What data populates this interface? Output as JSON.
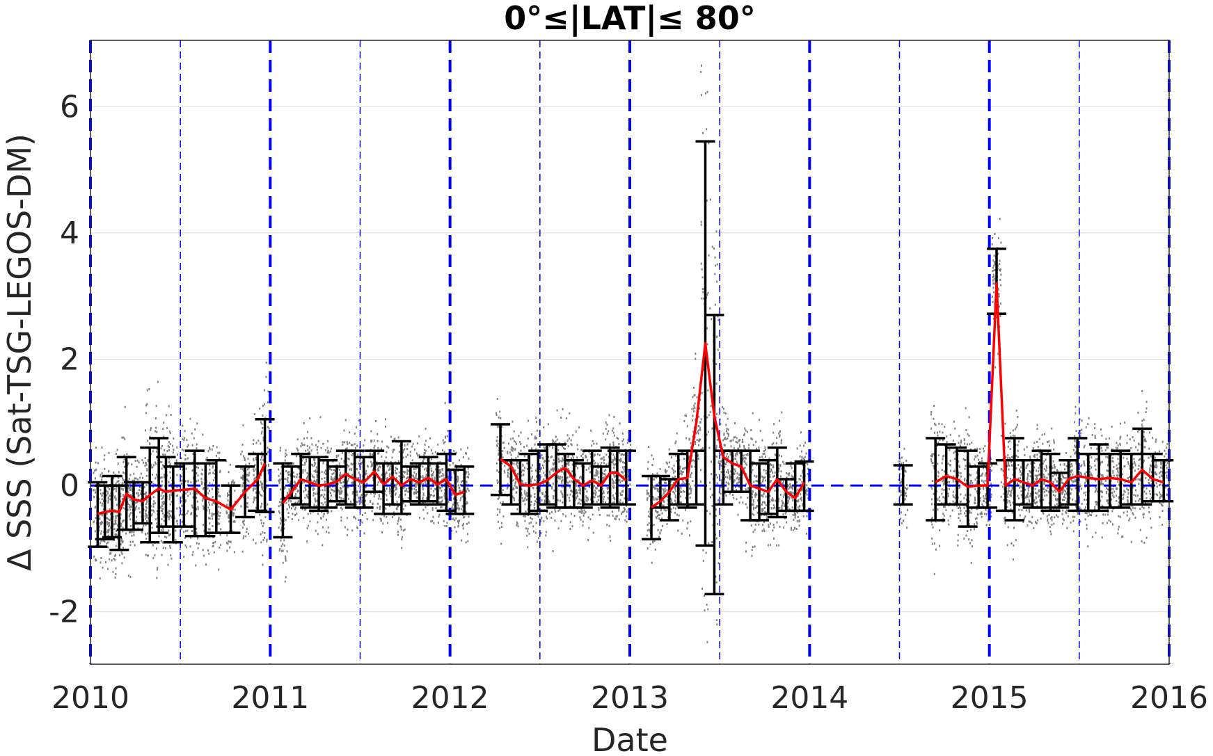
{
  "chart_data": {
    "type": "scatter",
    "title": "0°≤|LAT|≤ 80°",
    "xlabel": "Date",
    "ylabel": "Δ SSS (Sat-TSG-LEGOS-DM)",
    "xlim": [
      2010,
      2016
    ],
    "ylim": [
      -2.83,
      7.05
    ],
    "x_ticks": [
      "2010",
      "2011",
      "2012",
      "2013",
      "2014",
      "2015",
      "2016"
    ],
    "y_ticks": [
      "-2",
      "0",
      "2",
      "4",
      "6"
    ],
    "grid": true,
    "zero_line": 0,
    "colors": {
      "scatter": "#808080",
      "mean": "#ff0000",
      "errorbar": "#000000",
      "reference": "#0000ff",
      "grid": "#e0e0e0"
    },
    "year_lines": [
      2010,
      2011,
      2012,
      2013,
      2014,
      2015,
      2016
    ],
    "half_year_lines": [
      2010.5,
      2011.5,
      2012.5,
      2013.5,
      2014.5,
      2015.5
    ],
    "series": [
      {
        "x": [
          2010.04,
          2010.08,
          2010.12,
          2010.16,
          2010.2,
          2010.24,
          2010.29,
          2010.33,
          2010.38,
          2010.42,
          2010.46,
          2010.52,
          2010.58,
          2010.64,
          2010.7,
          2010.78,
          2010.86,
          2010.93,
          2010.97
        ],
        "mean": [
          -0.45,
          -0.42,
          -0.4,
          -0.42,
          -0.13,
          -0.22,
          -0.25,
          -0.15,
          -0.05,
          -0.1,
          -0.08,
          -0.07,
          -0.05,
          -0.2,
          -0.25,
          -0.38,
          -0.1,
          0.1,
          0.35
        ],
        "err_low": [
          -0.97,
          -0.85,
          -0.82,
          -1.02,
          -0.7,
          -0.7,
          -0.6,
          -0.9,
          -0.75,
          -0.65,
          -0.9,
          -0.65,
          -0.8,
          -0.8,
          -0.75,
          -0.75,
          -0.5,
          -0.4,
          -0.42
        ],
        "err_high": [
          0.05,
          0.0,
          0.15,
          0.0,
          0.45,
          0.05,
          0.05,
          0.6,
          0.75,
          0.45,
          0.3,
          0.35,
          0.55,
          0.35,
          0.4,
          0.0,
          0.3,
          0.5,
          1.05
        ]
      },
      {
        "x": [
          2011.07,
          2011.12,
          2011.17,
          2011.22,
          2011.27,
          2011.32,
          2011.37,
          2011.42,
          2011.47,
          2011.52,
          2011.58,
          2011.63,
          2011.68,
          2011.73,
          2011.78,
          2011.83,
          2011.88,
          2011.93,
          2011.98,
          2012.03,
          2012.08
        ],
        "mean": [
          -0.28,
          -0.1,
          0.1,
          0.05,
          0.0,
          0.02,
          0.06,
          0.18,
          0.1,
          0.05,
          0.22,
          0.02,
          0.14,
          0.0,
          0.1,
          0.05,
          0.12,
          0.02,
          0.1,
          -0.15,
          -0.1
        ],
        "err_low": [
          -0.82,
          -0.2,
          -0.3,
          -0.35,
          -0.4,
          -0.35,
          -0.25,
          -0.3,
          -0.35,
          -0.35,
          -0.1,
          -0.45,
          -0.3,
          -0.45,
          -0.25,
          -0.3,
          -0.25,
          -0.3,
          -0.4,
          -0.45,
          -0.45
        ],
        "err_high": [
          0.35,
          0.3,
          0.5,
          0.45,
          0.45,
          0.4,
          0.3,
          0.55,
          0.55,
          0.45,
          0.55,
          0.35,
          0.35,
          0.7,
          0.3,
          0.35,
          0.45,
          0.35,
          0.5,
          0.25,
          0.3
        ]
      },
      {
        "x": [
          2012.28,
          2012.34,
          2012.39,
          2012.44,
          2012.49,
          2012.54,
          2012.59,
          2012.64,
          2012.69,
          2012.74,
          2012.79,
          2012.84,
          2012.89,
          2012.93,
          2012.98
        ],
        "mean": [
          0.42,
          0.3,
          0.02,
          0.0,
          0.02,
          0.08,
          0.2,
          0.28,
          0.1,
          0.0,
          0.08,
          0.0,
          0.2,
          0.2,
          0.08
        ],
        "err_low": [
          -0.15,
          -0.3,
          -0.45,
          -0.45,
          -0.4,
          -0.3,
          -0.35,
          -0.35,
          -0.35,
          -0.35,
          -0.3,
          -0.3,
          -0.35,
          -0.3,
          -0.3
        ],
        "err_high": [
          0.97,
          0.4,
          0.4,
          0.5,
          0.55,
          0.65,
          0.65,
          0.5,
          0.4,
          0.35,
          0.55,
          0.3,
          0.6,
          0.55,
          0.55
        ]
      },
      {
        "x": [
          2013.12,
          2013.17,
          2013.22,
          2013.27,
          2013.32,
          2013.37,
          2013.42,
          2013.47,
          2013.52,
          2013.57,
          2013.62,
          2013.67,
          2013.72,
          2013.77,
          2013.82,
          2013.87,
          2013.92,
          2013.97
        ],
        "mean": [
          -0.35,
          -0.25,
          -0.1,
          0.1,
          0.12,
          1.0,
          2.25,
          1.1,
          0.45,
          0.35,
          0.3,
          0.0,
          -0.05,
          -0.1,
          0.1,
          -0.1,
          -0.2,
          0.05
        ],
        "err_low": [
          -0.85,
          -0.35,
          -0.55,
          -0.3,
          -0.35,
          -0.3,
          -0.95,
          -1.72,
          -0.3,
          -0.1,
          -0.1,
          -0.55,
          -0.55,
          -0.45,
          -0.5,
          -0.4,
          -0.4,
          -0.4
        ],
        "err_high": [
          0.15,
          0.15,
          0.1,
          0.5,
          0.55,
          0.55,
          5.45,
          2.7,
          0.55,
          0.55,
          0.55,
          0.55,
          0.35,
          0.4,
          0.6,
          0.1,
          0.35,
          0.38
        ]
      },
      {
        "x": [
          2014.52
        ],
        "mean": [
          0.0
        ],
        "err_low": [
          -0.3
        ],
        "err_high": [
          0.32
        ]
      },
      {
        "x": [
          2014.7,
          2014.76,
          2014.82,
          2014.88,
          2014.94,
          2014.99,
          2015.04,
          2015.09,
          2015.14,
          2015.19,
          2015.24,
          2015.29,
          2015.34,
          2015.39,
          2015.44,
          2015.49,
          2015.55,
          2015.61,
          2015.67,
          2015.73,
          2015.79,
          2015.85,
          2015.91,
          2015.97
        ],
        "mean": [
          0.05,
          0.15,
          0.1,
          -0.02,
          0.0,
          0.0,
          3.2,
          0.0,
          0.1,
          0.05,
          0.0,
          0.1,
          0.05,
          -0.1,
          0.1,
          0.15,
          0.12,
          0.1,
          0.12,
          0.1,
          0.05,
          0.25,
          0.1,
          0.05
        ],
        "err_low": [
          -0.55,
          -0.3,
          -0.3,
          -0.65,
          -0.35,
          -0.35,
          2.72,
          -0.4,
          -0.55,
          -0.3,
          -0.35,
          -0.35,
          -0.4,
          -0.35,
          -0.3,
          -0.4,
          -0.4,
          -0.4,
          -0.35,
          -0.35,
          -0.3,
          -0.3,
          -0.25,
          -0.25
        ],
        "err_high": [
          0.75,
          0.65,
          0.6,
          0.55,
          0.3,
          0.35,
          3.75,
          0.4,
          0.75,
          0.4,
          0.4,
          0.55,
          0.5,
          0.2,
          0.4,
          0.75,
          0.5,
          0.65,
          0.5,
          0.55,
          0.5,
          0.9,
          0.5,
          0.4
        ]
      }
    ]
  }
}
